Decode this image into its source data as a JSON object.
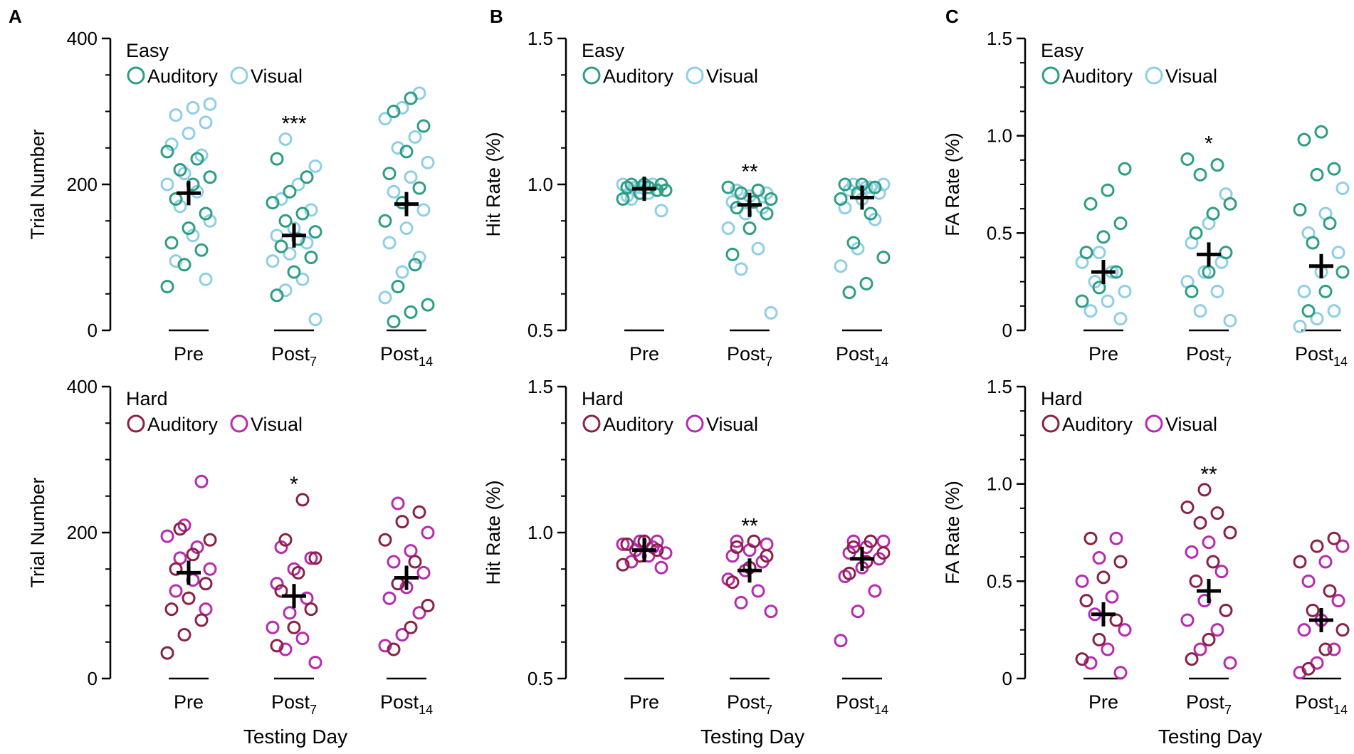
{
  "figure": {
    "panel_letters": [
      "A",
      "B",
      "C"
    ],
    "xlabel": "Testing Day",
    "colors": {
      "easy_auditory": "#2e9e82",
      "easy_visual": "#8fcfe6",
      "hard_auditory": "#8a2246",
      "hard_visual": "#b62bb0",
      "mean_marker": "#000000"
    }
  },
  "chart_data": [
    {
      "panel": "A",
      "row": "Easy",
      "type": "scatter",
      "ylabel": "Trial Number",
      "ylim": [
        0,
        400
      ],
      "yticks": [
        "0",
        "200",
        "400"
      ],
      "categories": [
        {
          "main": "Pre",
          "sub": ""
        },
        {
          "main": "Post",
          "sub": "7"
        },
        {
          "main": "Post",
          "sub": "14"
        }
      ],
      "legend": {
        "title": "Easy",
        "entries": [
          "Auditory",
          "Visual"
        ]
      },
      "significance": [
        "",
        "***",
        ""
      ],
      "means": [
        188,
        130,
        173
      ],
      "series": [
        {
          "name": "Auditory",
          "values": [
            [
              60,
              90,
              110,
              120,
              140,
              160,
              180,
              200,
              210,
              220,
              235,
              245
            ],
            [
              48,
              80,
              100,
              115,
              125,
              135,
              150,
              160,
              175,
              190,
              210,
              235
            ],
            [
              12,
              25,
              35,
              60,
              90,
              150,
              175,
              195,
              215,
              245,
              280,
              300,
              318
            ]
          ]
        },
        {
          "name": "Visual",
          "values": [
            [
              70,
              95,
              130,
              150,
              170,
              190,
              200,
              215,
              240,
              255,
              270,
              285,
              295,
              305,
              310
            ],
            [
              15,
              55,
              70,
              95,
              105,
              120,
              130,
              140,
              165,
              180,
              200,
              225,
              262
            ],
            [
              45,
              80,
              100,
              120,
              140,
              165,
              190,
              210,
              230,
              250,
              265,
              290,
              305,
              325
            ]
          ]
        }
      ]
    },
    {
      "panel": "B",
      "row": "Easy",
      "type": "scatter",
      "ylabel": "Hit Rate (%)",
      "ylim": [
        0.5,
        1.5
      ],
      "yticks": [
        "0.5",
        "1.0",
        "1.5"
      ],
      "categories": [
        {
          "main": "Pre",
          "sub": ""
        },
        {
          "main": "Post",
          "sub": "7"
        },
        {
          "main": "Post",
          "sub": "14"
        }
      ],
      "legend": {
        "title": "Easy",
        "entries": [
          "Auditory",
          "Visual"
        ]
      },
      "significance": [
        "",
        "**",
        ""
      ],
      "means": [
        0.985,
        0.93,
        0.955
      ],
      "series": [
        {
          "name": "Auditory",
          "values": [
            [
              0.95,
              0.97,
              0.98,
              0.99,
              1.0,
              1.0,
              1.0,
              0.99,
              0.98
            ],
            [
              0.76,
              0.85,
              0.9,
              0.92,
              0.94,
              0.95,
              0.97,
              0.98,
              0.99
            ],
            [
              0.63,
              0.66,
              0.75,
              0.8,
              0.9,
              0.95,
              0.97,
              0.99,
              1.0,
              1.0
            ]
          ]
        },
        {
          "name": "Visual",
          "values": [
            [
              0.91,
              0.95,
              0.97,
              0.98,
              0.99,
              1.0,
              1.0,
              0.99,
              0.98,
              0.96
            ],
            [
              0.56,
              0.71,
              0.78,
              0.85,
              0.9,
              0.92,
              0.94,
              0.96,
              0.97,
              0.98
            ],
            [
              0.72,
              0.78,
              0.88,
              0.92,
              0.95,
              0.97,
              0.98,
              0.99,
              1.0,
              1.0,
              0.99
            ]
          ]
        }
      ]
    },
    {
      "panel": "C",
      "row": "Easy",
      "type": "scatter",
      "ylabel": "FA Rate (%)",
      "ylim": [
        0,
        1.5
      ],
      "yticks": [
        "0",
        "0.5",
        "1.0",
        "1.5"
      ],
      "categories": [
        {
          "main": "Pre",
          "sub": ""
        },
        {
          "main": "Post",
          "sub": "7"
        },
        {
          "main": "Post",
          "sub": "14"
        }
      ],
      "legend": {
        "title": "Easy",
        "entries": [
          "Auditory",
          "Visual"
        ]
      },
      "significance": [
        "",
        "*",
        ""
      ],
      "means": [
        0.3,
        0.39,
        0.33
      ],
      "series": [
        {
          "name": "Auditory",
          "values": [
            [
              0.15,
              0.22,
              0.3,
              0.4,
              0.48,
              0.55,
              0.65,
              0.72,
              0.83
            ],
            [
              0.2,
              0.3,
              0.4,
              0.5,
              0.6,
              0.65,
              0.8,
              0.85,
              0.88
            ],
            [
              0.1,
              0.2,
              0.3,
              0.45,
              0.55,
              0.62,
              0.8,
              0.83,
              0.98,
              1.02
            ]
          ]
        },
        {
          "name": "Visual",
          "values": [
            [
              0.06,
              0.1,
              0.15,
              0.2,
              0.25,
              0.3,
              0.35,
              0.4
            ],
            [
              0.05,
              0.1,
              0.2,
              0.25,
              0.3,
              0.35,
              0.45,
              0.55,
              0.7
            ],
            [
              0.02,
              0.06,
              0.1,
              0.2,
              0.3,
              0.4,
              0.5,
              0.6,
              0.73
            ]
          ]
        }
      ]
    },
    {
      "panel": "A",
      "row": "Hard",
      "type": "scatter",
      "ylabel": "Trial Number",
      "ylim": [
        0,
        400
      ],
      "yticks": [
        "0",
        "200",
        "400"
      ],
      "categories": [
        {
          "main": "Pre",
          "sub": ""
        },
        {
          "main": "Post",
          "sub": "7"
        },
        {
          "main": "Post",
          "sub": "14"
        }
      ],
      "legend": {
        "title": "Hard",
        "entries": [
          "Auditory",
          "Visual"
        ]
      },
      "significance": [
        "",
        "*",
        ""
      ],
      "means": [
        145,
        113,
        138
      ],
      "series": [
        {
          "name": "Auditory",
          "values": [
            [
              35,
              60,
              80,
              95,
              110,
              130,
              150,
              170,
              190,
              205
            ],
            [
              45,
              70,
              95,
              120,
              145,
              165,
              190,
              245
            ],
            [
              40,
              70,
              100,
              130,
              160,
              190,
              215,
              228
            ]
          ]
        },
        {
          "name": "Visual",
          "values": [
            [
              95,
              120,
              135,
              150,
              165,
              180,
              195,
              210,
              270
            ],
            [
              22,
              40,
              55,
              70,
              90,
              110,
              130,
              150,
              165,
              180
            ],
            [
              45,
              60,
              90,
              110,
              125,
              145,
              160,
              175,
              200,
              240
            ]
          ]
        }
      ]
    },
    {
      "panel": "B",
      "row": "Hard",
      "type": "scatter",
      "ylabel": "Hit Rate (%)",
      "ylim": [
        0.5,
        1.5
      ],
      "yticks": [
        "0.5",
        "1.0",
        "1.5"
      ],
      "categories": [
        {
          "main": "Pre",
          "sub": ""
        },
        {
          "main": "Post",
          "sub": "7"
        },
        {
          "main": "Post",
          "sub": "14"
        }
      ],
      "legend": {
        "title": "Hard",
        "entries": [
          "Auditory",
          "Visual"
        ]
      },
      "significance": [
        "",
        "**",
        ""
      ],
      "means": [
        0.94,
        0.87,
        0.91
      ],
      "series": [
        {
          "name": "Auditory",
          "values": [
            [
              0.89,
              0.92,
              0.94,
              0.96,
              0.97
            ],
            [
              0.83,
              0.88,
              0.92,
              0.95,
              0.97
            ],
            [
              0.86,
              0.9,
              0.93,
              0.95,
              0.97
            ]
          ]
        },
        {
          "name": "Visual",
          "values": [
            [
              0.88,
              0.9,
              0.92,
              0.93,
              0.94,
              0.95,
              0.96,
              0.97,
              0.97
            ],
            [
              0.73,
              0.76,
              0.8,
              0.84,
              0.87,
              0.9,
              0.92,
              0.94,
              0.96,
              0.97
            ],
            [
              0.63,
              0.73,
              0.8,
              0.85,
              0.88,
              0.91,
              0.93,
              0.95,
              0.97,
              0.97
            ]
          ]
        }
      ]
    },
    {
      "panel": "C",
      "row": "Hard",
      "type": "scatter",
      "ylabel": "FA Rate (%)",
      "ylim": [
        0,
        1.5
      ],
      "yticks": [
        "0",
        "0.5",
        "1.0",
        "1.5"
      ],
      "categories": [
        {
          "main": "Pre",
          "sub": ""
        },
        {
          "main": "Post",
          "sub": "7"
        },
        {
          "main": "Post",
          "sub": "14"
        }
      ],
      "legend": {
        "title": "Hard",
        "entries": [
          "Auditory",
          "Visual"
        ]
      },
      "significance": [
        "",
        "**",
        ""
      ],
      "means": [
        0.33,
        0.45,
        0.3
      ],
      "series": [
        {
          "name": "Auditory",
          "values": [
            [
              0.1,
              0.2,
              0.3,
              0.4,
              0.52,
              0.6,
              0.72
            ],
            [
              0.1,
              0.2,
              0.35,
              0.5,
              0.6,
              0.75,
              0.8,
              0.85,
              0.88,
              0.97
            ],
            [
              0.05,
              0.15,
              0.25,
              0.35,
              0.45,
              0.6,
              0.68,
              0.72
            ]
          ]
        },
        {
          "name": "Visual",
          "values": [
            [
              0.03,
              0.08,
              0.15,
              0.25,
              0.33,
              0.42,
              0.5,
              0.62,
              0.72
            ],
            [
              0.08,
              0.15,
              0.25,
              0.3,
              0.4,
              0.55,
              0.65,
              0.7
            ],
            [
              0.03,
              0.08,
              0.15,
              0.25,
              0.3,
              0.4,
              0.5,
              0.6,
              0.68
            ]
          ]
        }
      ]
    }
  ]
}
